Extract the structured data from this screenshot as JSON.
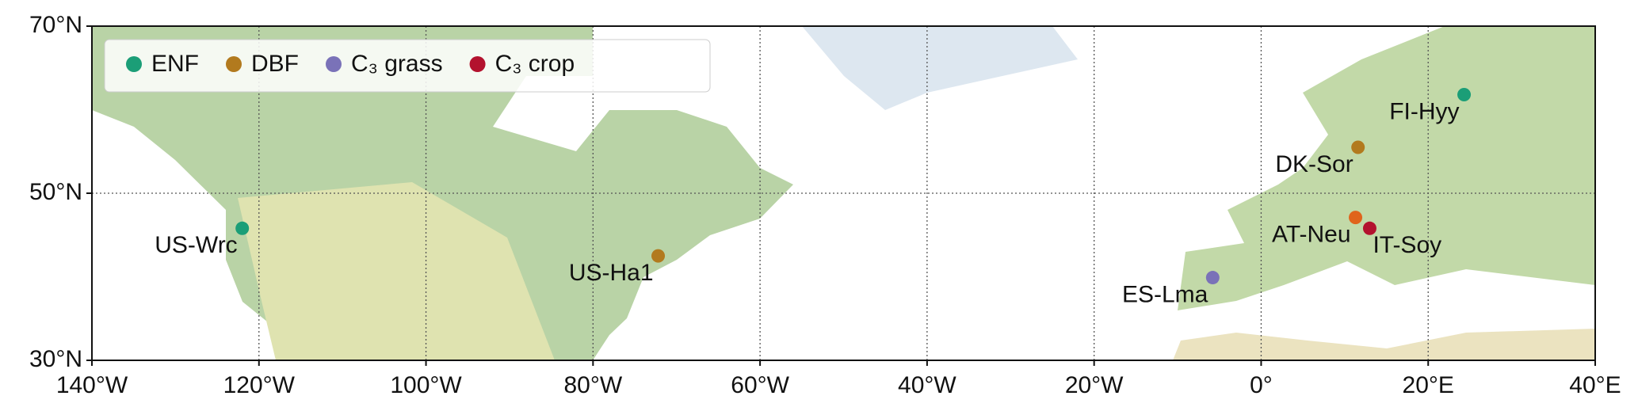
{
  "chart_data": {
    "type": "scatter",
    "xlim": [
      -140,
      40
    ],
    "ylim": [
      30,
      70
    ],
    "xticks": [
      {
        "value": -140,
        "label": "140°W"
      },
      {
        "value": -120,
        "label": "120°W"
      },
      {
        "value": -100,
        "label": "100°W"
      },
      {
        "value": -80,
        "label": "80°W"
      },
      {
        "value": -60,
        "label": "60°W"
      },
      {
        "value": -40,
        "label": "40°W"
      },
      {
        "value": -20,
        "label": "20°W"
      },
      {
        "value": 0,
        "label": "0°"
      },
      {
        "value": 20,
        "label": "20°E"
      },
      {
        "value": 40,
        "label": "40°E"
      }
    ],
    "yticks": [
      {
        "value": 30,
        "label": "30°N"
      },
      {
        "value": 50,
        "label": "50°N"
      },
      {
        "value": 70,
        "label": "70°N"
      }
    ],
    "grid": true,
    "legend": "upper left",
    "series": [
      {
        "name": "ENF",
        "color": "#1b9e77",
        "x": [
          -122.0,
          24.3
        ],
        "y": [
          45.8,
          61.8
        ],
        "labels": [
          "US-Wrc",
          "FI-Hyy"
        ]
      },
      {
        "name": "DBF",
        "color": "#b27a1e",
        "x": [
          -72.2,
          11.6
        ],
        "y": [
          42.5,
          55.5
        ],
        "labels": [
          "US-Ha1",
          "DK-Sor"
        ]
      },
      {
        "name": "C₃ grass",
        "color": "#7a72b8",
        "x": [
          -5.8,
          11.3
        ],
        "y": [
          39.9,
          47.1
        ],
        "labels": [
          "ES-Lma",
          "AT-Neu"
        ],
        "point_colors": [
          "#7a72b8",
          "#e0641c"
        ]
      },
      {
        "name": "C₃ crop",
        "color": "#b3122e",
        "x": [
          13.0
        ],
        "y": [
          45.8
        ],
        "labels": [
          "IT-Soy"
        ]
      }
    ]
  }
}
